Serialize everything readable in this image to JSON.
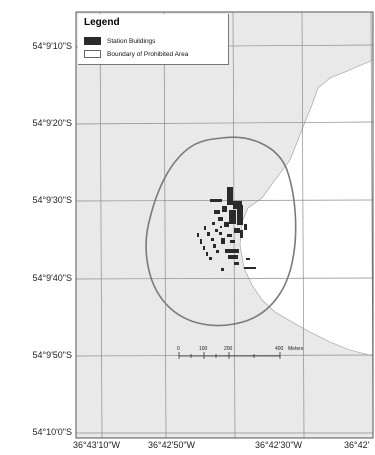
{
  "map": {
    "legend": {
      "title": "Legend",
      "items": [
        {
          "label": "Station Buildings",
          "swatch": "#2a2a2a"
        },
        {
          "label": "Boundary of Prohibited Area",
          "swatch": "#ffffff"
        }
      ]
    },
    "latitude_labels": [
      "54°9'10\"S",
      "54°9'20\"S",
      "54°9'30\"S",
      "54°9'40\"S",
      "54°9'50\"S",
      "54°10'0\"S"
    ],
    "longitude_labels": [
      "36°43'10\"W",
      "36°42'50\"W",
      "36°42'30\"W",
      "36°42'"
    ],
    "scale_bar": {
      "ticks": [
        "0",
        "100",
        "200",
        "400"
      ],
      "unit": "Meters"
    },
    "colors": {
      "land": "#e9e9e9",
      "water": "#ffffff",
      "boundary": "#7a7a7a",
      "grid": "#8c8c8c",
      "buildings": "#2a2a2a"
    }
  }
}
